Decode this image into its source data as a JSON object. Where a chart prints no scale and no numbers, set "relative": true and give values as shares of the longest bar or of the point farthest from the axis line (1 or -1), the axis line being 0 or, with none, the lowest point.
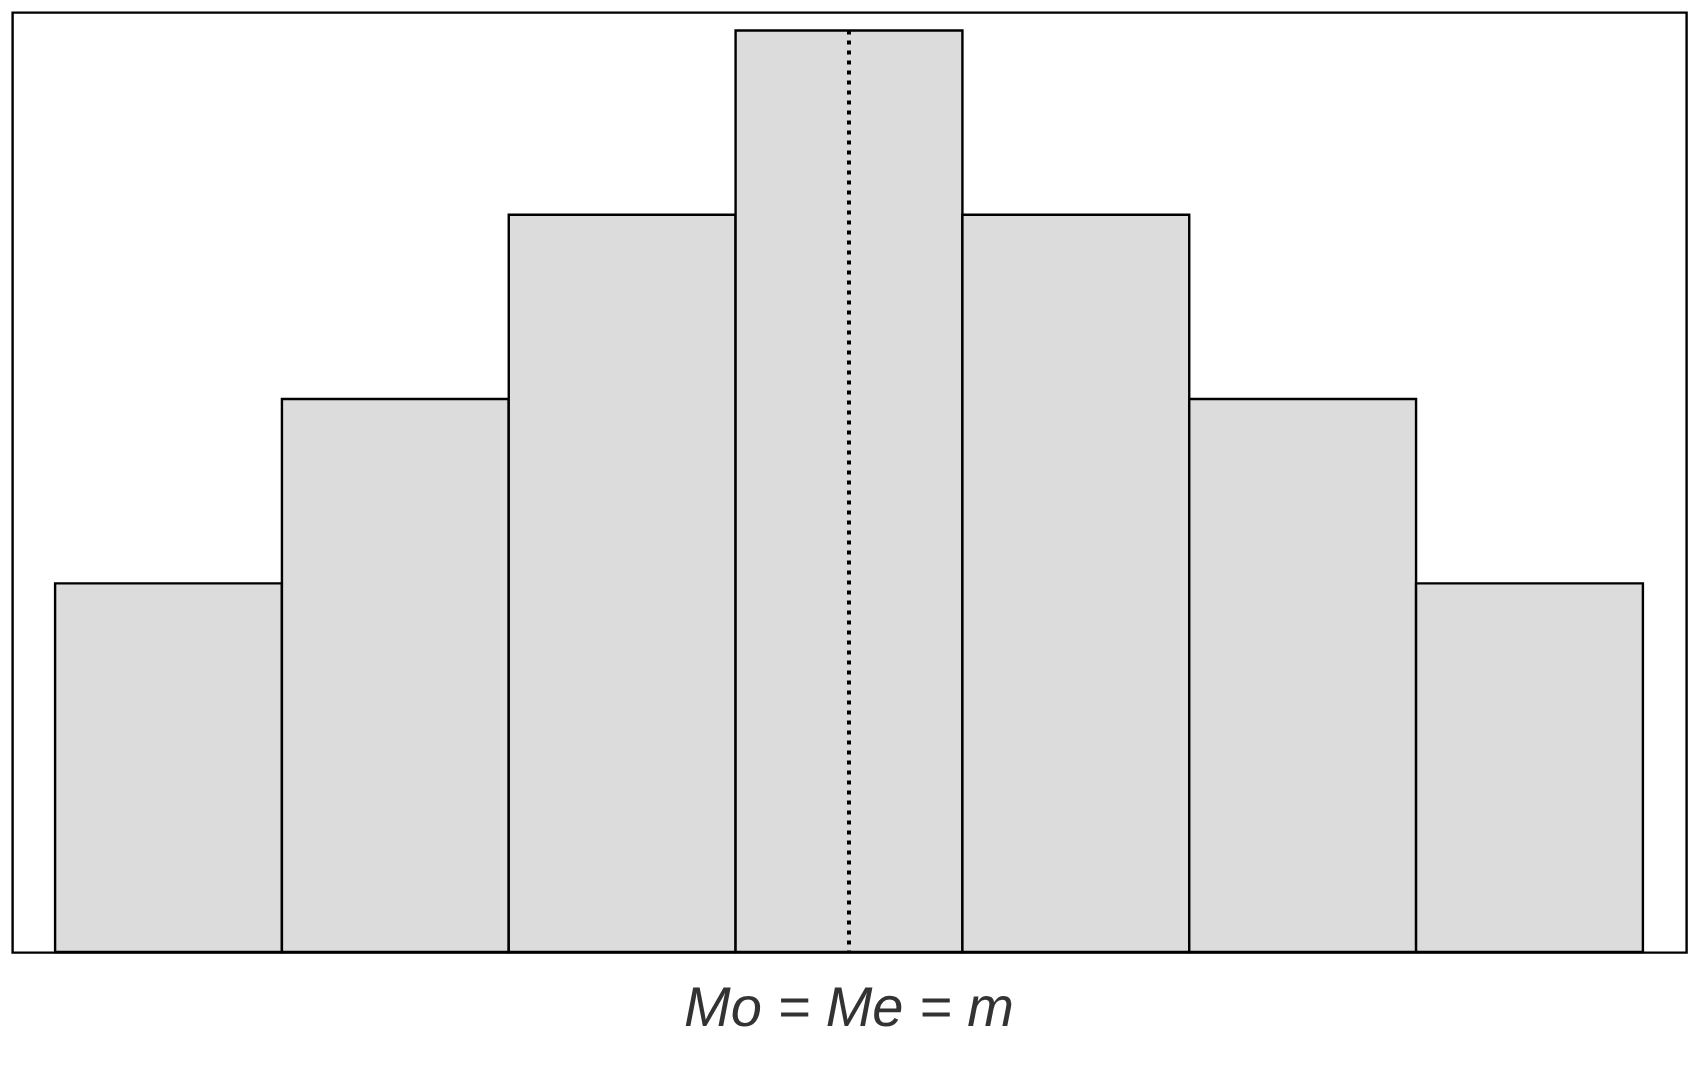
{
  "chart_data": {
    "type": "bar",
    "relative": true,
    "categories": [
      null,
      null,
      null,
      null,
      null,
      null,
      null
    ],
    "values": [
      0.4,
      0.6,
      0.8,
      1,
      0.8,
      0.6,
      0.4
    ],
    "color": "#dcdcdc",
    "tick_labels": false,
    "grid": false,
    "annotations": [
      "Mo = Me = m"
    ]
  }
}
